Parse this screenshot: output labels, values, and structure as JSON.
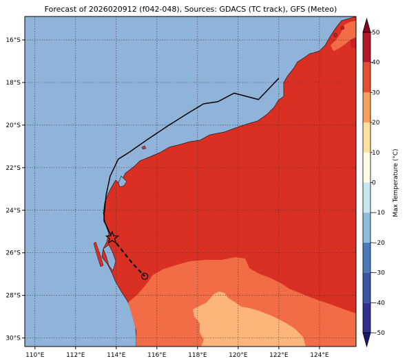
{
  "title": "Forecast of 2026020912 (f042-048), Sources: GDACS (TC track), GFS (Meteo)",
  "map": {
    "lon_range": [
      109.5,
      125.8
    ],
    "lat_range": [
      -30.4,
      -14.9
    ],
    "lon_ticks": [
      "110°E",
      "112°E",
      "114°E",
      "116°E",
      "118°E",
      "120°E",
      "122°E",
      "124°E"
    ],
    "lon_tick_values": [
      110,
      112,
      114,
      116,
      118,
      120,
      122,
      124
    ],
    "lat_ticks": [
      "16°S",
      "18°S",
      "20°S",
      "22°S",
      "24°S",
      "26°S",
      "28°S",
      "30°S"
    ],
    "lat_tick_values": [
      -16,
      -18,
      -20,
      -22,
      -24,
      -26,
      -28,
      -30
    ],
    "grid": true,
    "ocean_color": "#8fb3d9"
  },
  "colorbar": {
    "label": "Max Temperature (°C)",
    "tick_labels": [
      "50",
      "40",
      "30",
      "20",
      "10",
      "0",
      "−10",
      "−20",
      "−30",
      "−40",
      "−50"
    ],
    "tick_values": [
      50,
      40,
      30,
      20,
      10,
      0,
      -10,
      -20,
      -30,
      -40,
      -50
    ],
    "range": [
      -50,
      50
    ],
    "extend": "both",
    "bands": [
      {
        "from": -50,
        "to": -40,
        "color": "#30308f"
      },
      {
        "from": -40,
        "to": -30,
        "color": "#3b55a6"
      },
      {
        "from": -30,
        "to": -20,
        "color": "#4b7ab8"
      },
      {
        "from": -20,
        "to": -10,
        "color": "#8bbcd9"
      },
      {
        "from": -10,
        "to": 0,
        "color": "#c9e6f0"
      },
      {
        "from": 0,
        "to": 10,
        "color": "#fffbe6"
      },
      {
        "from": 10,
        "to": 20,
        "color": "#fddf9e"
      },
      {
        "from": 20,
        "to": 30,
        "color": "#f7a05e"
      },
      {
        "from": 30,
        "to": 40,
        "color": "#e4502f"
      },
      {
        "from": 40,
        "to": 50,
        "color": "#b2182b"
      }
    ],
    "over_color": "#8b001f",
    "under_color": "#1a1a70"
  },
  "fill_colors": {
    "band_40_50": "#cf1d26",
    "band_30_40": "#d93023",
    "band_20_30": "#f26c45",
    "band_10_20": "#fdb57a"
  },
  "tc_track": {
    "past": [
      [
        122.0,
        -17.8
      ],
      [
        121.0,
        -18.8
      ],
      [
        119.8,
        -18.5
      ],
      [
        119.0,
        -18.9
      ],
      [
        118.3,
        -19.0
      ],
      [
        117.6,
        -19.4
      ],
      [
        116.6,
        -20.0
      ],
      [
        115.5,
        -20.7
      ],
      [
        114.6,
        -21.3
      ],
      [
        114.1,
        -21.6
      ],
      [
        113.7,
        -22.4
      ],
      [
        113.5,
        -23.3
      ],
      [
        113.4,
        -24.2
      ],
      [
        113.4,
        -24.5
      ],
      [
        113.8,
        -25.3
      ]
    ],
    "forecast": [
      [
        113.8,
        -25.3
      ],
      [
        114.3,
        -25.9
      ],
      [
        114.8,
        -26.5
      ],
      [
        115.4,
        -27.1
      ]
    ],
    "current_position": [
      113.8,
      -25.3
    ],
    "forecast_position": [
      115.4,
      -27.1
    ]
  }
}
